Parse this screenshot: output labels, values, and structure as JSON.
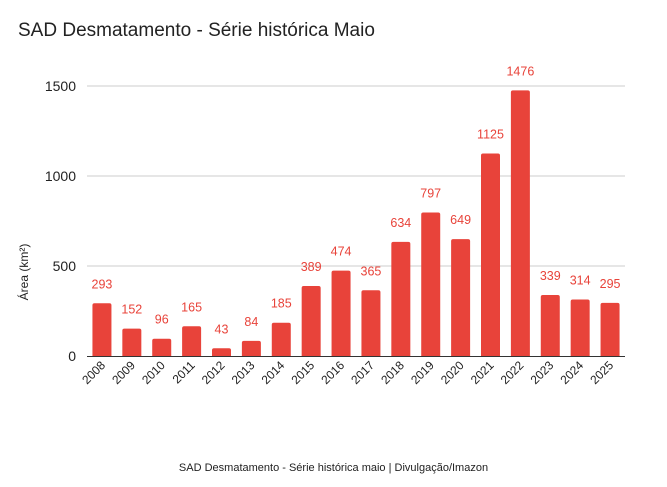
{
  "chart_data": {
    "type": "bar",
    "title": "SAD Desmatamento - Série histórica Maio",
    "ylabel": "Área (km²)",
    "xlabel": "",
    "ylim": [
      0,
      1500
    ],
    "yticks": [
      0,
      500,
      1000,
      1500
    ],
    "grid": true,
    "categories": [
      "2008",
      "2009",
      "2010",
      "2011",
      "2012",
      "2013",
      "2014",
      "2015",
      "2016",
      "2017",
      "2018",
      "2019",
      "2020",
      "2021",
      "2022",
      "2023",
      "2024",
      "2025"
    ],
    "values": [
      293,
      152,
      96,
      165,
      43,
      84,
      185,
      389,
      474,
      365,
      634,
      797,
      649,
      1125,
      1476,
      339,
      314,
      295
    ],
    "data_labels": [
      "293",
      "152",
      "96",
      "165",
      "43",
      "84",
      "185",
      "389",
      "474",
      "365",
      "634",
      "797",
      "649",
      "1125",
      "1476",
      "339",
      "314",
      "295"
    ],
    "bar_color": "#e8433a",
    "label_color": "#e8433a"
  },
  "caption": "SAD Desmatamento - Série histórica maio | Divulgação/Imazon"
}
